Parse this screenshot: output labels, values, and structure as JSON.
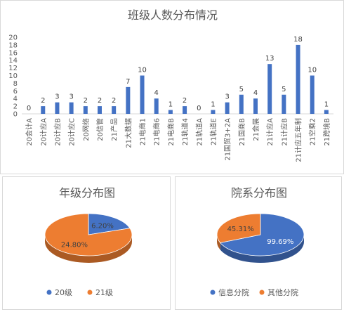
{
  "chart_data": [
    {
      "type": "bar",
      "title": "班级人数分布情况",
      "categories": [
        "20会计A",
        "20计应A",
        "20计应B",
        "20计应C",
        "20网络",
        "20信管",
        "21产品",
        "21大数据",
        "21电商1",
        "21电商6",
        "21电商B",
        "21轨道4",
        "21轨道A",
        "21轨道E",
        "21国贸3+2A",
        "21国商B",
        "21会展",
        "21计应A",
        "21计应B",
        "21计应五年制",
        "21空乘2",
        "21跨境B"
      ],
      "values": [
        0,
        2,
        3,
        3,
        2,
        2,
        2,
        7,
        10,
        4,
        1,
        2,
        0,
        1,
        3,
        5,
        4,
        13,
        5,
        18,
        10,
        1
      ],
      "yticks": [
        0,
        2,
        4,
        6,
        8,
        10,
        12,
        14,
        16,
        18,
        20
      ],
      "ylim": [
        0,
        20
      ],
      "bar_color": "#4472c4"
    },
    {
      "type": "pie",
      "title": "年级分布图",
      "slices": [
        {
          "name": "20级",
          "value": 6.2,
          "label": "6.20%",
          "color": "#4472c4"
        },
        {
          "name": "21级",
          "value": 24.8,
          "label": "24.80%",
          "color": "#ed7d31"
        }
      ],
      "legend": "bottom"
    },
    {
      "type": "pie",
      "title": "院系分布图",
      "slices": [
        {
          "name": "信息分院",
          "value": 99.69,
          "label": "99.69%",
          "color": "#4472c4"
        },
        {
          "name": "其他分院",
          "value": 45.31,
          "label": "45.31%",
          "color": "#ed7d31"
        }
      ],
      "legend": "bottom"
    }
  ]
}
